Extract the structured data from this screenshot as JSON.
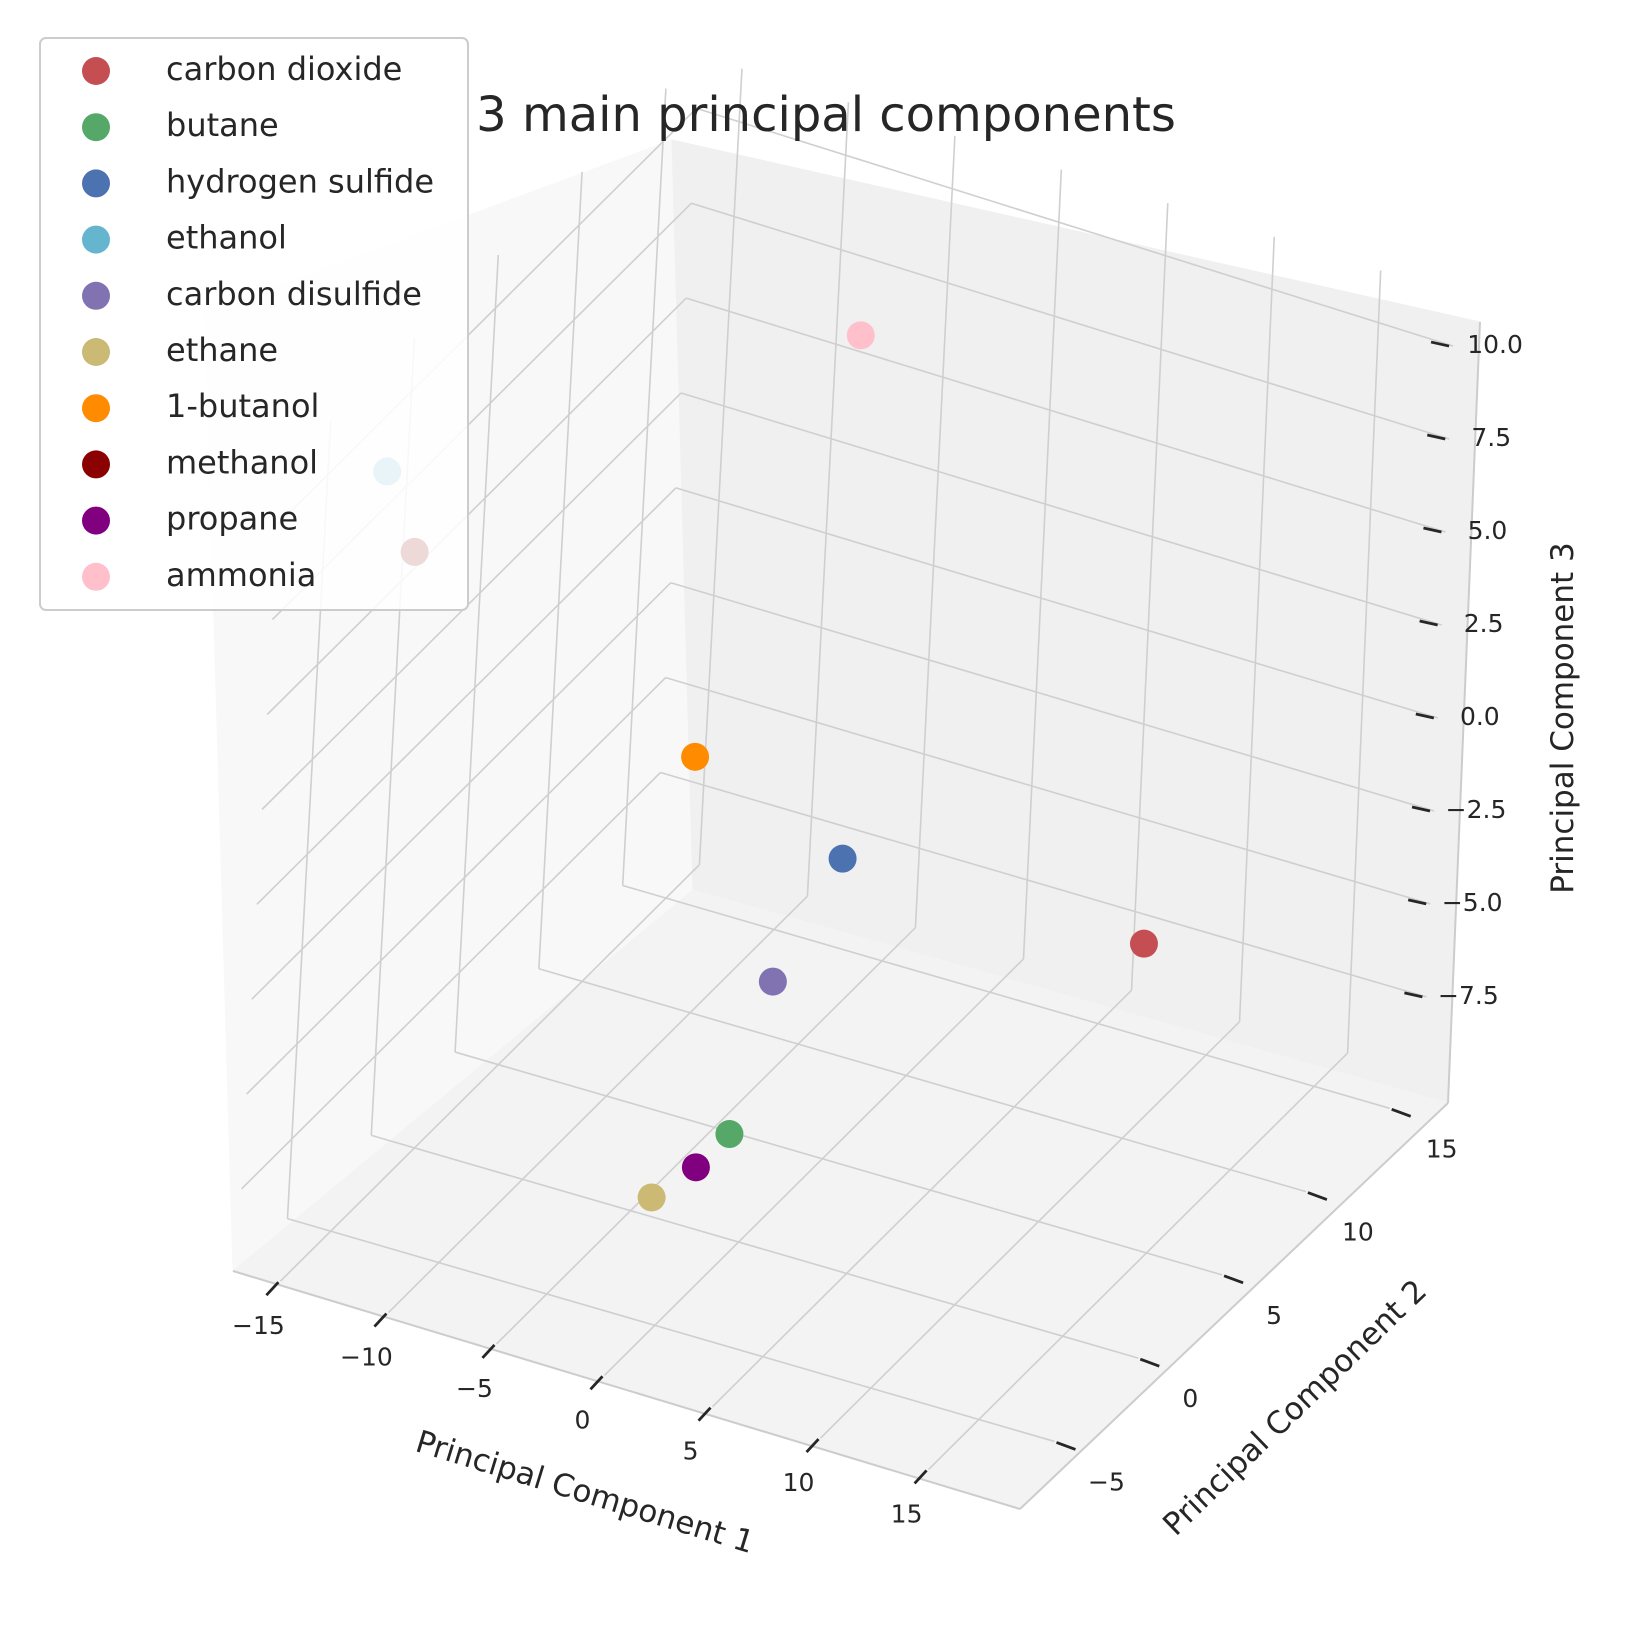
{
  "chart_data": {
    "type": "scatter",
    "title": "3 main principal components",
    "xlabel": "Principal Component 1",
    "ylabel": "Principal Component 2",
    "zlabel": "Principal Component 3",
    "xticks": [
      "−15",
      "−10",
      "−5",
      "0",
      "5",
      "10",
      "15"
    ],
    "yticks": [
      "−5",
      "0",
      "5",
      "10",
      "15"
    ],
    "zticks": [
      "−7.5",
      "−5.0",
      "−2.5",
      "0.0",
      "2.5",
      "5.0",
      "7.5",
      "10.0"
    ],
    "grid": true,
    "legend_position": "top-left",
    "series": [
      {
        "name": "carbon dioxide",
        "color": "#c44e52",
        "x": 16.5,
        "y": 2.0,
        "z": 0.3
      },
      {
        "name": "butane",
        "color": "#55a868",
        "x": 3.0,
        "y": -5.0,
        "z": -4.0
      },
      {
        "name": "hydrogen sulfide",
        "color": "#4c72b0",
        "x": 1.0,
        "y": 4.0,
        "z": -1.0
      },
      {
        "name": "ethanol",
        "color": "#64b5cd",
        "x": -15.0,
        "y": -4.0,
        "z": 10.0
      },
      {
        "name": "carbon disulfide",
        "color": "#8172b2",
        "x": 1.0,
        "y": 0.0,
        "z": -2.5
      },
      {
        "name": "ethane",
        "color": "#ccb974",
        "x": 2.5,
        "y": -9.0,
        "z": -4.0
      },
      {
        "name": "1-butanol",
        "color": "#ff8c00",
        "x": -6.0,
        "y": 4.0,
        "z": 0.5
      },
      {
        "name": "methanol",
        "color": "#8b0000",
        "x": -15.0,
        "y": -2.0,
        "z": 7.0
      },
      {
        "name": "propane",
        "color": "#800080",
        "x": 3.0,
        "y": -7.0,
        "z": -4.0
      },
      {
        "name": "ammonia",
        "color": "#ffc0cb",
        "x": -3.0,
        "y": 9.0,
        "z": 10.0
      }
    ]
  }
}
